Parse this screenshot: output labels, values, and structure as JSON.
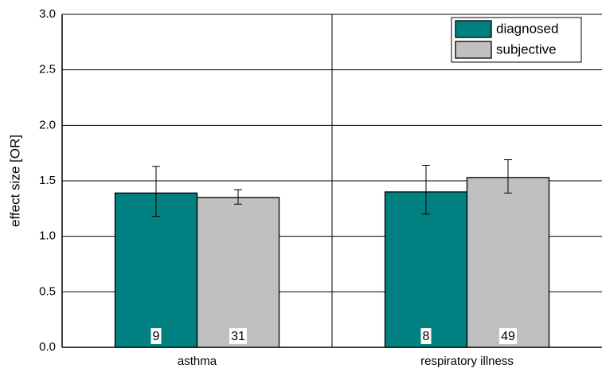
{
  "chart_data": {
    "type": "bar",
    "ylabel": "effect size [OR]",
    "categories": [
      "asthma",
      "respiratory illness"
    ],
    "series": [
      {
        "name": "diagnosed",
        "color": "#008080",
        "values": [
          1.39,
          1.4
        ],
        "lower": [
          1.18,
          1.2
        ],
        "upper": [
          1.63,
          1.64
        ],
        "labels": [
          "9",
          "8"
        ]
      },
      {
        "name": "subjective",
        "color": "#c0c0c0",
        "values": [
          1.35,
          1.53
        ],
        "lower": [
          1.29,
          1.39
        ],
        "upper": [
          1.42,
          1.69
        ],
        "labels": [
          "31",
          "49"
        ]
      }
    ],
    "ylim": [
      0,
      3
    ],
    "yticks": [
      {
        "value": 0,
        "label": "0.0"
      },
      0.5,
      {
        "value": 1,
        "label": "1.0"
      },
      1.5,
      {
        "value": 2,
        "label": "2.0"
      },
      2.5,
      {
        "value": 3,
        "label": "3.0"
      }
    ],
    "grid": true,
    "legend": "upper right"
  }
}
